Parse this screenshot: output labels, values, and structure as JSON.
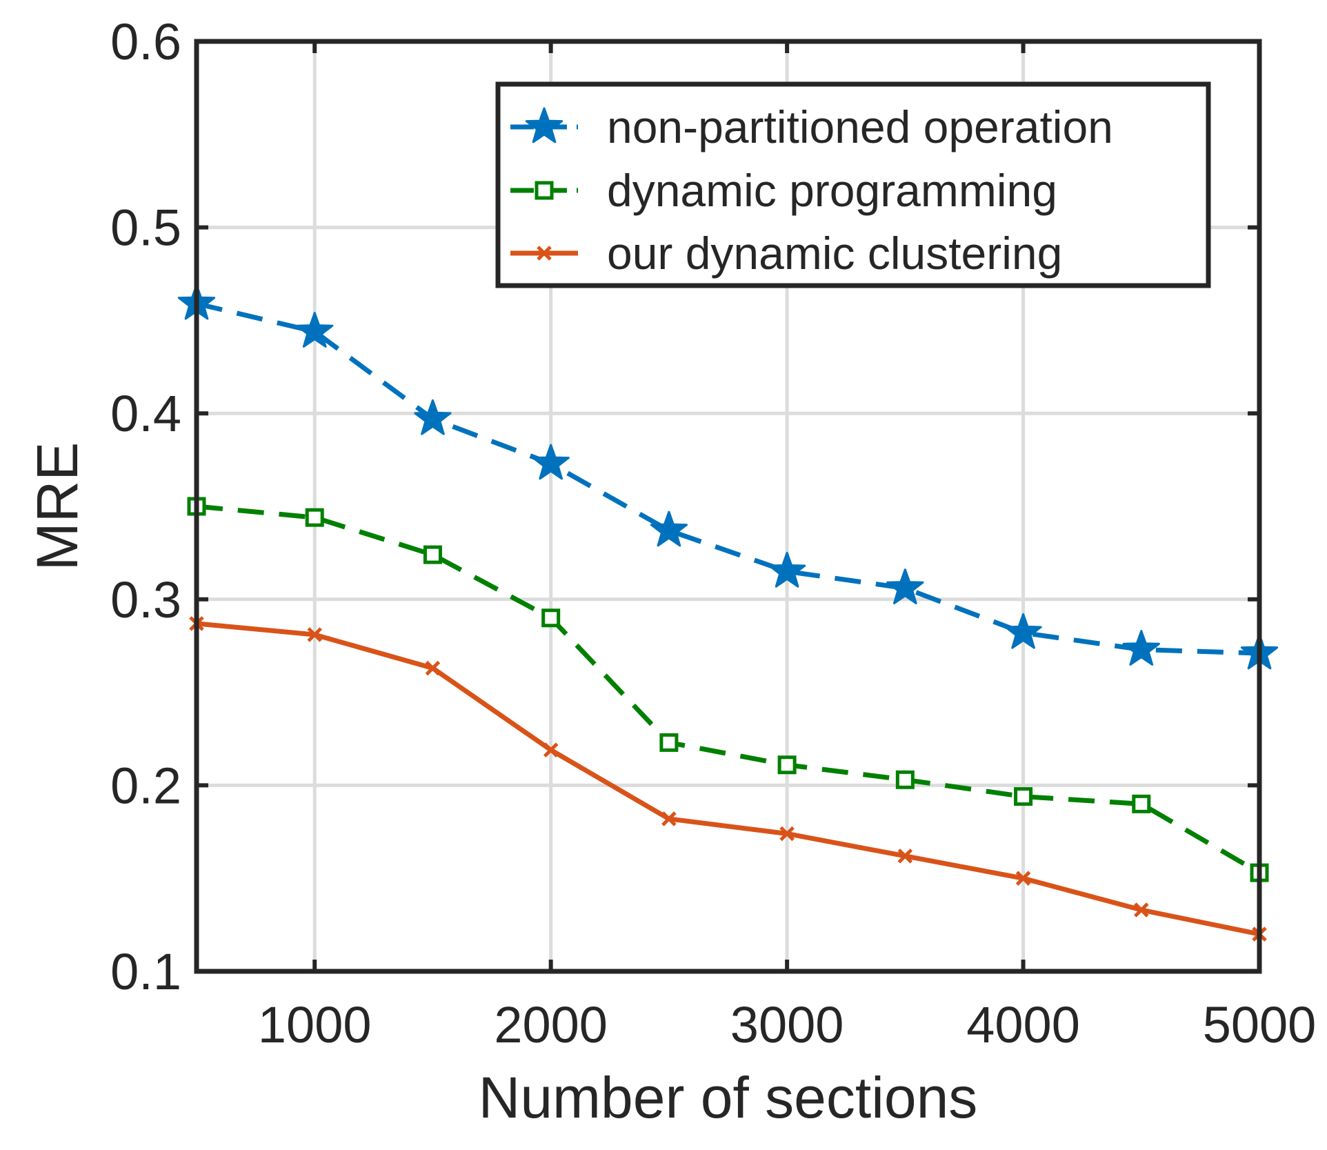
{
  "chart_data": {
    "type": "line",
    "title": "",
    "xlabel": "Number of sections",
    "ylabel": "MRE",
    "xlim": [
      500,
      5000
    ],
    "ylim": [
      0.1,
      0.6
    ],
    "xticks": [
      1000,
      2000,
      3000,
      4000,
      5000
    ],
    "xtick_labels": [
      "1000",
      "2000",
      "3000",
      "4000",
      "5000"
    ],
    "yticks": [
      0.1,
      0.2,
      0.3,
      0.4,
      0.5,
      0.6
    ],
    "ytick_labels": [
      "0.1",
      "0.2",
      "0.3",
      "0.4",
      "0.5",
      "0.6"
    ],
    "grid": true,
    "legend_position": "top-right",
    "x": [
      500,
      1000,
      1500,
      2000,
      2500,
      3000,
      3500,
      4000,
      4500,
      5000
    ],
    "series": [
      {
        "name": "non-partitioned operation",
        "color": "#0072BD",
        "line_style": "dashed",
        "marker": "star",
        "values": [
          0.459,
          0.444,
          0.397,
          0.373,
          0.337,
          0.315,
          0.306,
          0.282,
          0.273,
          0.271
        ]
      },
      {
        "name": "dynamic programming",
        "color": "#008000",
        "line_style": "dashed",
        "marker": "square",
        "values": [
          0.35,
          0.344,
          0.324,
          0.29,
          0.223,
          0.211,
          0.203,
          0.194,
          0.19,
          0.153
        ]
      },
      {
        "name": "our dynamic clustering",
        "color": "#D95319",
        "line_style": "solid",
        "marker": "x",
        "values": [
          0.287,
          0.281,
          0.263,
          0.219,
          0.182,
          0.174,
          0.162,
          0.15,
          0.133,
          0.12
        ]
      }
    ]
  }
}
